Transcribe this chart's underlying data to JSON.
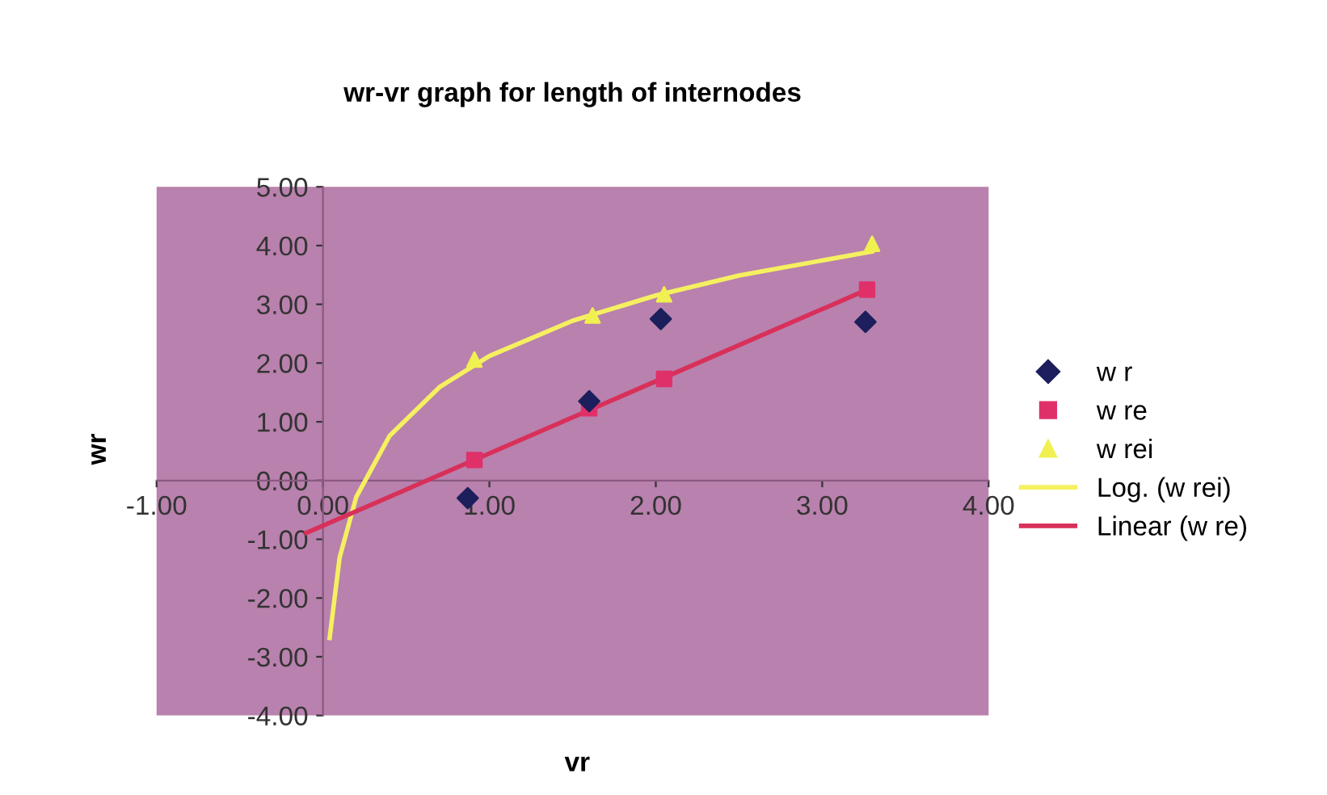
{
  "chart_data": {
    "type": "scatter",
    "title": "wr-vr graph for length of internodes",
    "xlabel": "vr",
    "ylabel": "wr",
    "xlim": [
      -1,
      4
    ],
    "ylim": [
      -4,
      5
    ],
    "xticks": [
      {
        "value": -1,
        "label": "-1.00"
      },
      {
        "value": 0,
        "label": "0.00"
      },
      {
        "value": 1,
        "label": "1.00"
      },
      {
        "value": 2,
        "label": "2.00"
      },
      {
        "value": 3,
        "label": "3.00"
      },
      {
        "value": 4,
        "label": "4.00"
      }
    ],
    "yticks": [
      {
        "value": -4,
        "label": "-4.00"
      },
      {
        "value": -3,
        "label": "-3.00"
      },
      {
        "value": -2,
        "label": "-2.00"
      },
      {
        "value": -1,
        "label": "-1.00"
      },
      {
        "value": 0,
        "label": "0.00"
      },
      {
        "value": 1,
        "label": "1.00"
      },
      {
        "value": 2,
        "label": "2.00"
      },
      {
        "value": 3,
        "label": "3.00"
      },
      {
        "value": 4,
        "label": "4.00"
      },
      {
        "value": 5,
        "label": "5.00"
      }
    ],
    "grid": false,
    "legend": "right",
    "series": [
      {
        "name": "w r",
        "marker": "diamond",
        "color": "#1c1f5c",
        "x": [
          0.87,
          1.6,
          2.03,
          3.26
        ],
        "values": [
          -0.3,
          1.35,
          2.75,
          2.7
        ]
      },
      {
        "name": "w re",
        "marker": "square",
        "color": "#e0306a",
        "x": [
          0.91,
          1.6,
          2.05,
          3.27
        ],
        "values": [
          0.35,
          1.23,
          1.73,
          3.25
        ]
      },
      {
        "name": "w rei",
        "marker": "triangle",
        "color": "#f0f050",
        "x": [
          0.91,
          1.62,
          2.05,
          3.3
        ],
        "values": [
          2.06,
          2.81,
          3.17,
          4.03
        ]
      },
      {
        "name": "Log. (w rei)",
        "type": "line",
        "marker": "none",
        "color": "#f5f060",
        "x": [
          0.04,
          0.1,
          0.2,
          0.4,
          0.7,
          1.0,
          1.5,
          2.0,
          2.5,
          3.3
        ],
        "values": [
          -2.68,
          -1.31,
          -0.28,
          0.76,
          1.59,
          2.12,
          2.72,
          3.15,
          3.49,
          3.9
        ]
      },
      {
        "name": "Linear (w re)",
        "type": "line",
        "marker": "none",
        "color": "#d8305a",
        "x": [
          -0.1,
          3.27
        ],
        "values": [
          -0.89,
          3.25
        ]
      }
    ]
  }
}
